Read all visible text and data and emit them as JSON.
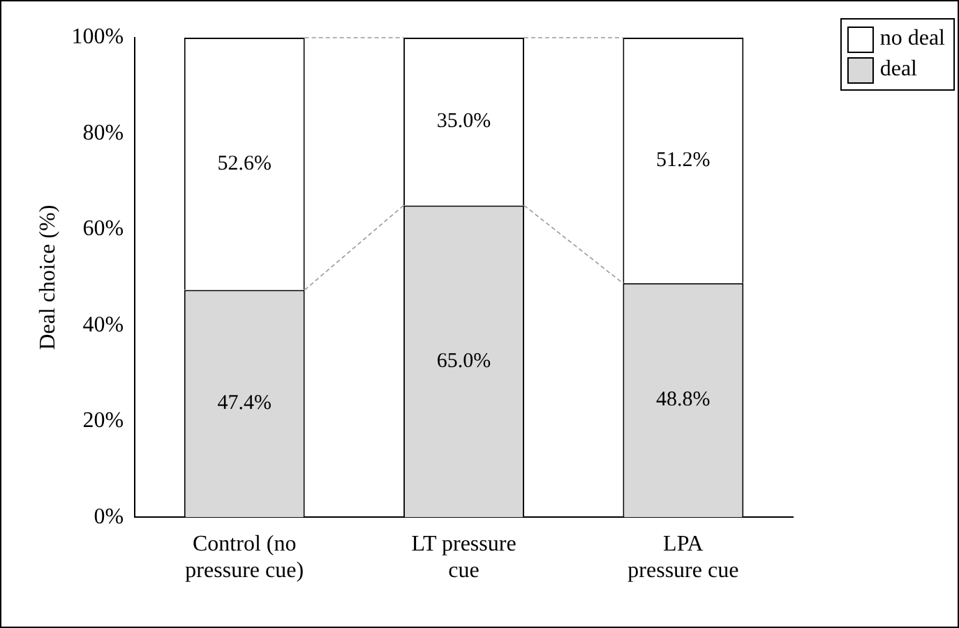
{
  "chart_data": {
    "type": "bar",
    "stacked": true,
    "ylabel": "Deal choice (%)",
    "categories": [
      "Control (no\npressure cue)",
      "LT pressure\ncue",
      "LPA\npressure cue"
    ],
    "series": [
      {
        "name": "deal",
        "color": "#d9d9d9",
        "values": [
          47.4,
          65.0,
          48.8
        ],
        "value_labels": [
          "47.4%",
          "65.0%",
          "48.8%"
        ]
      },
      {
        "name": "no deal",
        "color": "#ffffff",
        "values": [
          52.6,
          35.0,
          51.2
        ],
        "value_labels": [
          "52.6%",
          "35.0%",
          "51.2%"
        ]
      }
    ],
    "ylim": [
      0,
      100
    ],
    "yticks": [
      {
        "value": 0,
        "label": "0%"
      },
      {
        "value": 20,
        "label": "20%"
      },
      {
        "value": 40,
        "label": "40%"
      },
      {
        "value": 60,
        "label": "60%"
      },
      {
        "value": 80,
        "label": "80%"
      },
      {
        "value": 100,
        "label": "100%"
      }
    ],
    "grid": false,
    "legend": "top right"
  }
}
